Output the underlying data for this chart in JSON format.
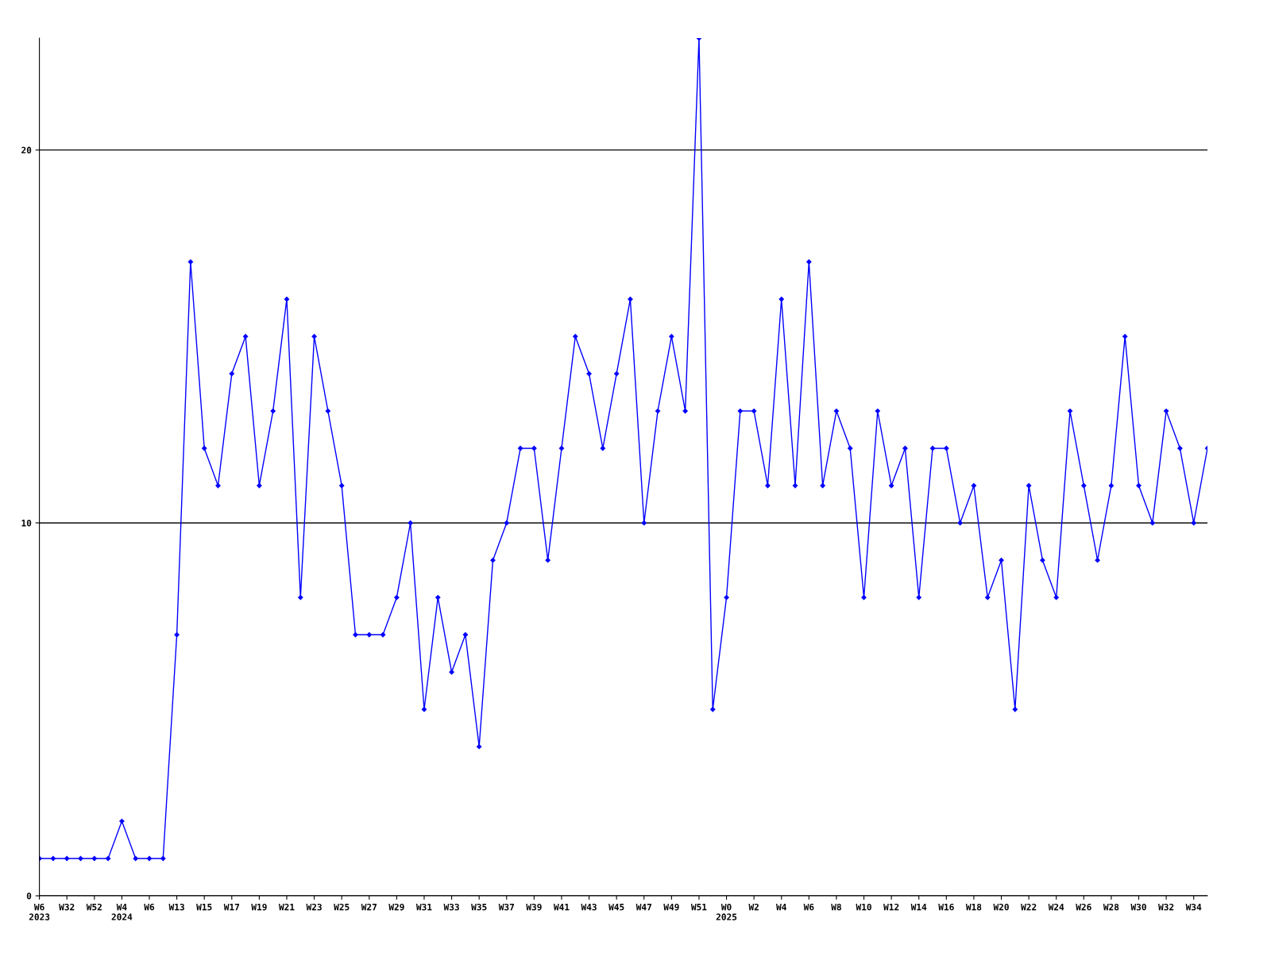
{
  "chart_data": {
    "type": "line",
    "categories": [
      "W6\n2023",
      null,
      "W32",
      null,
      "W52",
      null,
      "W4\n2024",
      null,
      "W6",
      null,
      "W13",
      null,
      "W15",
      null,
      "W17",
      null,
      "W19",
      null,
      "W21",
      null,
      "W23",
      null,
      "W25",
      null,
      "W27",
      null,
      "W29",
      null,
      "W31",
      null,
      "W33",
      null,
      "W35",
      null,
      "W37",
      null,
      "W39",
      null,
      "W41",
      null,
      "W43",
      null,
      "W45",
      null,
      "W47",
      null,
      "W49",
      null,
      "W51",
      null,
      "W0\n2025",
      null,
      "W2",
      null,
      "W4",
      null,
      "W6",
      null,
      "W8",
      null,
      "W10",
      null,
      "W12",
      null,
      "W14",
      null,
      "W16",
      null,
      "W18",
      null,
      "W20",
      null,
      "W22",
      null,
      "W24",
      null,
      "W26",
      null,
      "W28",
      null,
      "W30",
      null,
      "W32",
      null,
      "W34",
      null
    ],
    "series": [
      {
        "color": "#0000ff",
        "values": [
          1,
          1,
          1,
          1,
          1,
          1,
          2,
          1,
          1,
          1,
          7,
          17,
          12,
          11,
          14,
          15,
          11,
          13,
          16,
          8,
          15,
          13,
          11,
          7,
          7,
          7,
          8,
          10,
          5,
          8,
          6,
          7,
          4,
          9,
          10,
          12,
          12,
          9,
          12,
          15,
          14,
          12,
          14,
          16,
          10,
          13,
          15,
          13,
          23,
          5,
          8,
          13,
          13,
          11,
          16,
          11,
          17,
          11,
          13,
          12,
          8,
          13,
          11,
          12,
          8,
          12,
          12,
          10,
          11,
          8,
          9,
          5,
          11,
          9,
          8,
          13,
          11,
          9,
          11,
          15,
          11,
          10,
          13,
          12,
          10,
          12
        ]
      }
    ],
    "ylim": [
      0,
      23
    ],
    "yticks": [
      0,
      10,
      20
    ],
    "grid": "y",
    "marker": "diamond",
    "line_style": "solid",
    "legend": false
  }
}
